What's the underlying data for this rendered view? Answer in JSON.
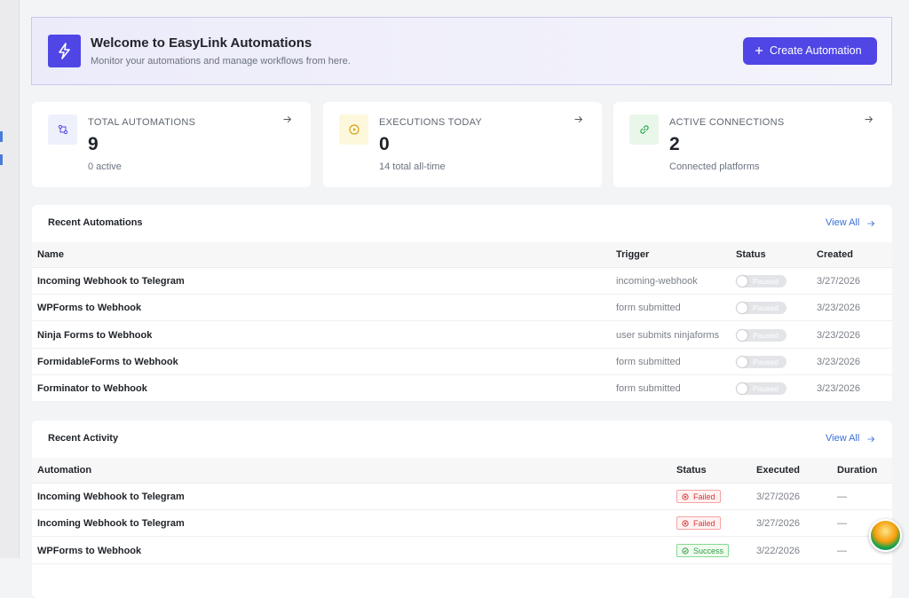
{
  "header": {
    "title": "Welcome to EasyLink Automations",
    "subtitle": "Monitor your automations and manage workflows from here.",
    "button": "Create Automation"
  },
  "stats": [
    {
      "label": "TOTAL AUTOMATIONS",
      "value": 9,
      "note": "0 active"
    },
    {
      "label": "EXECUTIONS TODAY",
      "value": 0,
      "note": "14 total all-time"
    },
    {
      "label": "ACTIVE CONNECTIONS",
      "value": 2,
      "note": "Connected platforms"
    }
  ],
  "recent_automations": {
    "title": "Recent Automations",
    "link": "View All",
    "columns": [
      "Name",
      "Trigger",
      "Status",
      "Created"
    ],
    "rows": [
      [
        "Incoming Webhook to Telegram",
        "incoming-webhook",
        "Paused",
        "3/27/2026"
      ],
      [
        "WPForms to Webhook",
        "form submitted",
        "Paused",
        "3/23/2026"
      ],
      [
        "Ninja Forms to Webhook",
        "user submits ninjaforms",
        "Paused",
        "3/23/2026"
      ],
      [
        "FormidableForms to Webhook",
        "form submitted",
        "Paused",
        "3/23/2026"
      ],
      [
        "Forminator to Webhook",
        "form submitted",
        "Paused",
        "3/23/2026"
      ]
    ]
  },
  "recent_activity": {
    "title": "Recent Activity",
    "link": "View All",
    "columns": [
      "Automation",
      "Status",
      "Executed",
      "Duration"
    ],
    "rows": [
      [
        "Incoming Webhook to Telegram",
        "Failed",
        "3/27/2026",
        "—"
      ],
      [
        "Incoming Webhook to Telegram",
        "Failed",
        "3/27/2026",
        "—"
      ],
      [
        "WPForms to Webhook",
        "Success",
        "3/22/2026",
        "—"
      ]
    ]
  }
}
